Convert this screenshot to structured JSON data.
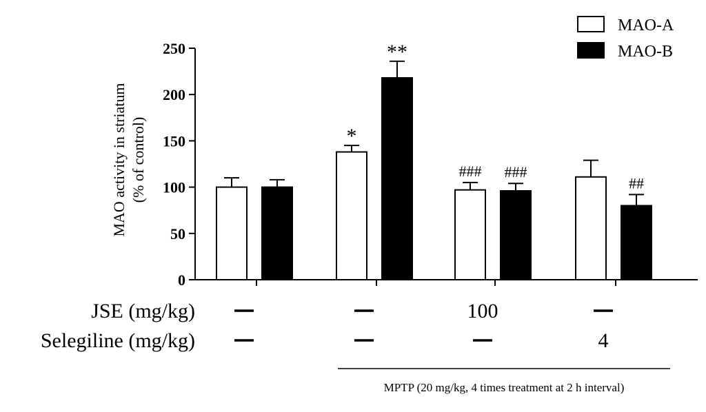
{
  "chart_data": {
    "type": "bar",
    "ylabel_line1": "MAO activity in striatum",
    "ylabel_line2": "(% of control)",
    "ylim": [
      0,
      250
    ],
    "yticks": [
      "0",
      "50",
      "100",
      "150",
      "200",
      "250"
    ],
    "ytick_values": [
      0,
      50,
      100,
      150,
      200,
      250
    ],
    "groups": 4,
    "series": [
      {
        "name": "MAO-A",
        "color": "#ffffff",
        "values": [
          100,
          138,
          97,
          111
        ],
        "errors": [
          10,
          7,
          8,
          18
        ],
        "annotations": [
          "",
          "*",
          "###",
          ""
        ]
      },
      {
        "name": "MAO-B",
        "color": "#000000",
        "values": [
          100,
          218,
          96,
          80
        ],
        "errors": [
          8,
          18,
          8,
          12
        ],
        "annotations": [
          "",
          "**",
          "###",
          "##"
        ]
      }
    ],
    "treatment_rows": [
      {
        "label": "JSE (mg/kg)",
        "values": [
          "—",
          "—",
          "100",
          "—"
        ]
      },
      {
        "label": "Selegiline (mg/kg)",
        "values": [
          "—",
          "—",
          "—",
          "4"
        ]
      }
    ],
    "mptp_note": "MPTP (20 mg/kg, 4 times treatment at 2 h interval)"
  }
}
